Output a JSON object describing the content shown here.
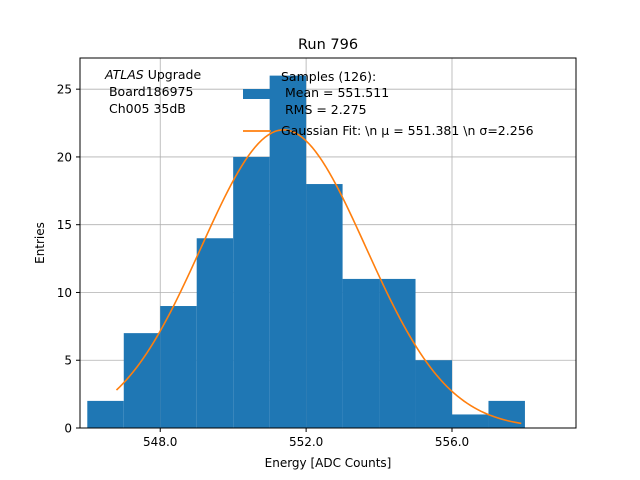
{
  "chart_data": {
    "type": "bar",
    "title": "Run 796",
    "xlabel": "Energy [ADC Counts]",
    "ylabel": "Entries",
    "xlim": [
      545.8,
      559.4
    ],
    "ylim": [
      0,
      27.3
    ],
    "grid": true,
    "x_ticks": [
      548.0,
      552.0,
      556.0
    ],
    "x_tick_labels": [
      "548.0",
      "552.0",
      "556.0"
    ],
    "y_ticks": [
      0,
      5,
      10,
      15,
      20,
      25
    ],
    "y_tick_labels": [
      "0",
      "5",
      "10",
      "15",
      "20",
      "25"
    ],
    "annotation": {
      "italic": "ATLAS",
      "line1_rest": " Upgrade",
      "line2": " Board186975",
      "line3": " Ch005 35dB"
    },
    "legend": {
      "placement": "top-right",
      "samples_label": [
        "Samples (126):",
        " Mean = 551.511",
        " RMS = 2.275"
      ],
      "fit_label": "Gaussian Fit: \\n μ = 551.381 \\n σ=2.256"
    },
    "histogram": {
      "name": "Samples",
      "color": "#1f77b4",
      "bin_edges": [
        546.0,
        547.0,
        548.0,
        549.0,
        550.0,
        551.0,
        552.0,
        553.0,
        554.0,
        555.0,
        556.0,
        557.0,
        558.0
      ],
      "counts": [
        2,
        7,
        9,
        14,
        20,
        26,
        18,
        11,
        11,
        5,
        1,
        2
      ]
    },
    "fit": {
      "name": "Gaussian Fit",
      "color": "#ff7f0e",
      "mu": 551.381,
      "sigma": 2.256,
      "amplitude": 22.0,
      "x_range": [
        546.8,
        557.9
      ]
    }
  }
}
